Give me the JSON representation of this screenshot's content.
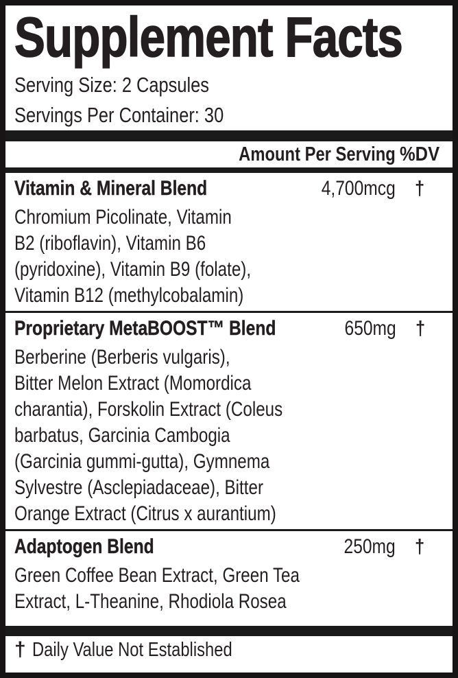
{
  "colors": {
    "text": "#231f20",
    "rule": "#1a1a1a",
    "background": "#ffffff"
  },
  "label": {
    "title": "Supplement Facts",
    "serving_size": "Serving Size: 2 Capsules",
    "servings_per_container": "Servings Per Container: 30",
    "columns": {
      "amount": "Amount Per Serving",
      "dv": "%DV"
    },
    "blends": [
      {
        "name": "Vitamin & Mineral Blend",
        "amount": "4,700mcg",
        "dv": "†",
        "lines": [
          "Chromium Picolinate, Vitamin",
          "B2 (riboflavin), Vitamin B6",
          "(pyridoxine), Vitamin B9 (folate),",
          "Vitamin B12 (methylcobalamin)"
        ]
      },
      {
        "name": "Proprietary MetaBOOST™ Blend",
        "amount": "650mg",
        "dv": "†",
        "lines": [
          "Berberine (Berberis vulgaris),",
          "Bitter Melon Extract (Momordica",
          "charantia), Forskolin Extract (Coleus",
          "barbatus, Garcinia Cambogia",
          "(Garcinia gummi-gutta), Gymnema",
          "Sylvestre (Asclepiadaceae), Bitter",
          "Orange Extract (Citrus x aurantium)"
        ]
      },
      {
        "name": "Adaptogen Blend",
        "amount": "250mg",
        "dv": "†",
        "lines": [
          "Green Coffee Bean Extract, Green Tea",
          "Extract, L-Theanine, Rhodiola Rosea"
        ]
      }
    ],
    "footnote": {
      "symbol": "†",
      "text": "Daily Value Not Established"
    }
  }
}
